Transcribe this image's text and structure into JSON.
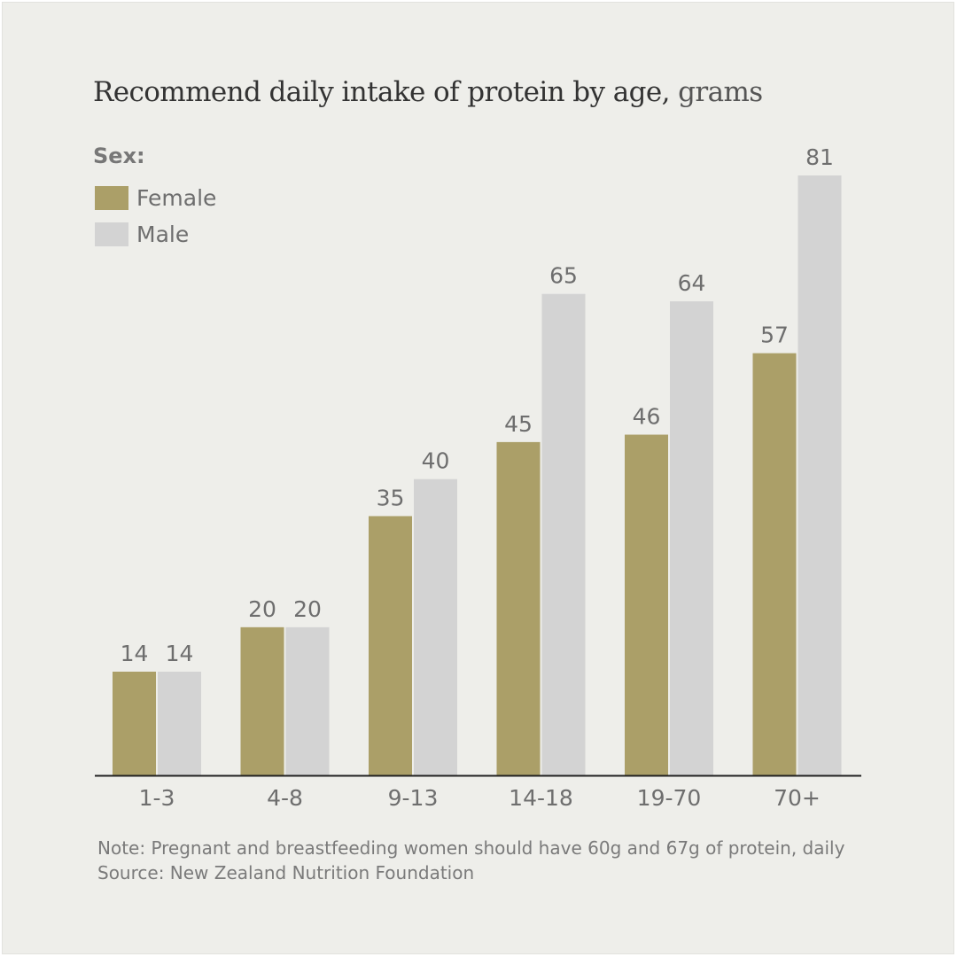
{
  "title": {
    "main": "Recommend daily intake of protein by age,",
    "unit": "grams"
  },
  "legend": {
    "heading": "Sex:",
    "items": [
      {
        "label": "Female",
        "color": "#ab9f68"
      },
      {
        "label": "Male",
        "color": "#d3d3d3"
      }
    ]
  },
  "footer": {
    "note": "Note: Pregnant and breastfeeding women should have 60g and 67g of protein, daily",
    "source": "Source: New Zealand Nutrition Foundation"
  },
  "chart_data": {
    "type": "bar",
    "title": "Recommend daily intake of protein by age, grams",
    "categories": [
      "1-3",
      "4-8",
      "9-13",
      "14-18",
      "19-70",
      "70+"
    ],
    "series": [
      {
        "name": "Female",
        "color": "#ab9f68",
        "values": [
          14,
          20,
          35,
          45,
          46,
          57
        ]
      },
      {
        "name": "Male",
        "color": "#d3d3d3",
        "values": [
          14,
          20,
          40,
          65,
          64,
          81
        ]
      }
    ],
    "ylim": [
      0,
      81
    ],
    "grid": false,
    "legend_position": "top-left",
    "data_labels": true
  }
}
